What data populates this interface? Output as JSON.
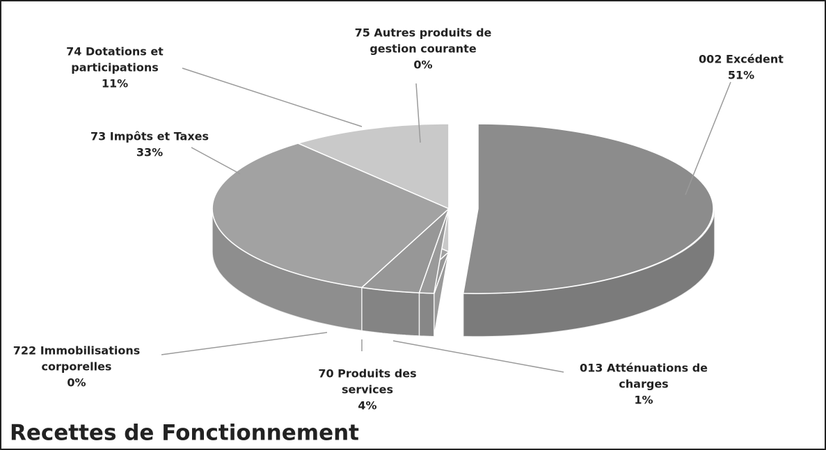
{
  "chart_data": {
    "type": "pie3d",
    "title": "Recettes de Fonctionnement",
    "categories": [
      [
        "002 Excédent"
      ],
      [
        "013 Atténuations de",
        "charges"
      ],
      [
        "70  Produits des",
        "services"
      ],
      [
        "722 Immobilisations",
        "corporelles"
      ],
      [
        "73 Impôts et Taxes"
      ],
      [
        "74 Dotations et",
        "participations"
      ],
      [
        "75 Autres produits de",
        "gestion courante"
      ]
    ],
    "values": [
      51,
      1,
      4,
      0,
      33,
      11,
      0
    ],
    "value_labels": [
      "51%",
      "1%",
      "4%",
      "0%",
      "33%",
      "11%",
      "0%"
    ],
    "colors": [
      "#8c8c8c",
      "#9a9a9a",
      "#979797",
      "#a3a3a3",
      "#a2a2a2",
      "#c9c9c9",
      "#bdbdbd"
    ],
    "exploded": [
      true,
      false,
      false,
      false,
      false,
      false,
      false
    ]
  }
}
